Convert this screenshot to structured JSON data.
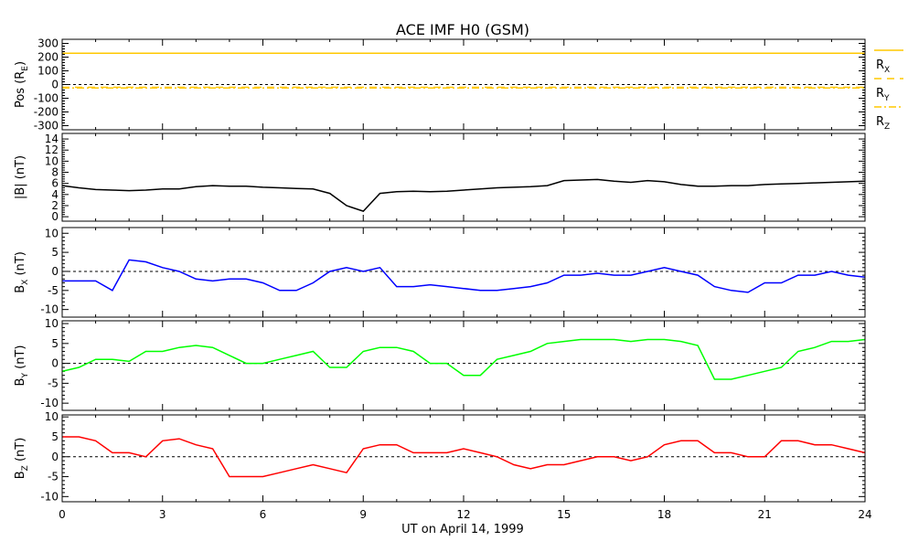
{
  "chart_data": {
    "type": "line",
    "title": "ACE IMF H0 (GSM)",
    "xlabel": "UT on April 14, 1999",
    "xlim": [
      0,
      24
    ],
    "xticks": [
      "0",
      "3",
      "6",
      "9",
      "12",
      "15",
      "18",
      "21",
      "24"
    ],
    "panels": [
      {
        "ylabel": "Pos (RE)",
        "ylabel_main": "Pos (R",
        "ylabel_sub": "E",
        "ylabel_end": ")",
        "ylim": [
          -330,
          330
        ],
        "yticks": [
          300,
          200,
          100,
          0,
          -100,
          -200,
          -300
        ],
        "series": [
          {
            "name": "RX",
            "sub": "X",
            "color": "#ffc800",
            "dash": "",
            "values": [
              228,
              228
            ]
          },
          {
            "name": "RY",
            "sub": "Y",
            "color": "#ffc800",
            "dash": "8,6",
            "values": [
              -20,
              -20
            ]
          },
          {
            "name": "RZ",
            "sub": "Z",
            "color": "#ffc800",
            "dash": "8,3,2,3",
            "values": [
              -25,
              -25
            ]
          }
        ]
      },
      {
        "ylabel": "|B| (nT)",
        "ylabel_main": "|B| (nT)",
        "ylabel_sub": "",
        "ylabel_end": "",
        "ylim": [
          -0.8,
          15
        ],
        "yticks": [
          14,
          12,
          10,
          8,
          6,
          4,
          2,
          0
        ],
        "series": [
          {
            "name": "|B|",
            "color": "#000000",
            "values": [
              5.6,
              5.2,
              4.9,
              4.8,
              4.7,
              4.8,
              5.0,
              5.0,
              5.4,
              5.6,
              5.5,
              5.5,
              5.3,
              5.2,
              5.1,
              5.0,
              4.2,
              2.0,
              1.0,
              4.2,
              4.5,
              4.6,
              4.5,
              4.6,
              4.8,
              5.0,
              5.2,
              5.3,
              5.4,
              5.6,
              6.5,
              6.6,
              6.7,
              6.4,
              6.2,
              6.5,
              6.3,
              5.8,
              5.5,
              5.5,
              5.6,
              5.6,
              5.8,
              5.9,
              6.0,
              6.1,
              6.2,
              6.3,
              6.4
            ]
          }
        ]
      },
      {
        "ylabel": "BX (nT)",
        "ylabel_main": "B",
        "ylabel_sub": "X",
        "ylabel_end": " (nT)",
        "ylim": [
          -12,
          11.5
        ],
        "yticks": [
          10,
          5,
          0,
          -5,
          -10
        ],
        "zero_line": true,
        "series": [
          {
            "name": "BX",
            "color": "#0000ff",
            "values": [
              -2.5,
              -2.5,
              -2.5,
              -5,
              3,
              2.5,
              1,
              0,
              -2,
              -2.5,
              -2,
              -2,
              -3,
              -5,
              -5,
              -3,
              0,
              1,
              0,
              1,
              -4,
              -4,
              -3.5,
              -4,
              -4.5,
              -5,
              -5,
              -4.5,
              -4,
              -3,
              -1,
              -1,
              -0.5,
              -1,
              -1,
              0,
              1,
              0,
              -1,
              -4,
              -5,
              -5.5,
              -3,
              -3,
              -1,
              -1,
              0,
              -1,
              -1.5
            ]
          }
        ]
      },
      {
        "ylabel": "BY (nT)",
        "ylabel_main": "B",
        "ylabel_sub": "Y",
        "ylabel_end": " (nT)",
        "ylim": [
          -11.8,
          10.7
        ],
        "yticks": [
          10,
          5,
          0,
          -5,
          -10
        ],
        "zero_line": true,
        "series": [
          {
            "name": "BY",
            "color": "#00ff00",
            "values": [
              -2,
              -1,
              1,
              1,
              0.5,
              3,
              3,
              4,
              4.5,
              4,
              2,
              0,
              0,
              1,
              2,
              3,
              -1,
              -1,
              3,
              4,
              4,
              3,
              0,
              0,
              -3,
              -3,
              1,
              2,
              3,
              5,
              5.5,
              6,
              6,
              6,
              5.5,
              6,
              6,
              5.5,
              4.5,
              -4,
              -4,
              -3,
              -2,
              -1,
              3,
              4,
              5.5,
              5.5,
              6
            ]
          }
        ]
      },
      {
        "ylabel": "BZ (nT)",
        "ylabel_main": "B",
        "ylabel_sub": "Z",
        "ylabel_end": " (nT)",
        "ylim": [
          -11.3,
          10.5
        ],
        "yticks": [
          10,
          5,
          0,
          -5,
          -10
        ],
        "zero_line": true,
        "series": [
          {
            "name": "BZ",
            "color": "#ff0000",
            "values": [
              5,
              5,
              4,
              1,
              1,
              0,
              4,
              4.5,
              3,
              2,
              -5,
              -5,
              -5,
              -4,
              -3,
              -2,
              -3,
              -4,
              2,
              3,
              3,
              1,
              1,
              1,
              2,
              1,
              0,
              -2,
              -3,
              -2,
              -2,
              -1,
              0,
              0,
              -1,
              0,
              3,
              4,
              4,
              1,
              1,
              0,
              0,
              4,
              4,
              3,
              3,
              2,
              1
            ]
          }
        ]
      }
    ],
    "legend": {
      "placement": "right-of-top-panel",
      "labels": [
        "R",
        "R",
        "R"
      ]
    }
  }
}
